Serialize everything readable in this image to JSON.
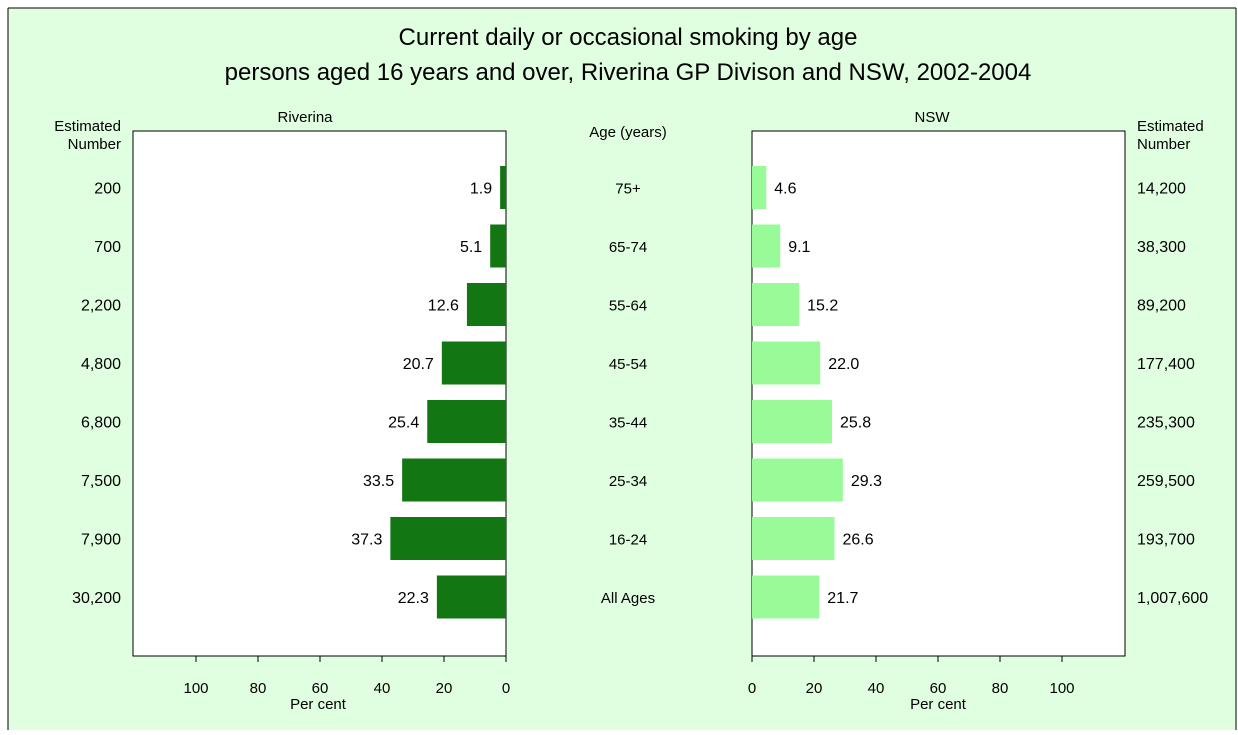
{
  "chart_data": {
    "type": "bar",
    "title": [
      "Current daily or occasional smoking by age",
      "persons aged 16 years and over, Riverina GP Divison and NSW, 2002-2004"
    ],
    "categories": [
      "75+",
      "65-74",
      "55-64",
      "45-54",
      "35-44",
      "25-34",
      "16-24",
      "All Ages"
    ],
    "category_axis_label": "Age (years)",
    "series": [
      {
        "name": "Riverina",
        "values": [
          1.9,
          5.1,
          12.6,
          20.7,
          25.4,
          33.5,
          37.3,
          22.3
        ],
        "value_labels": [
          "1.9",
          "5.1",
          "12.6",
          "20.7",
          "25.4",
          "33.5",
          "37.3",
          "22.3"
        ],
        "estimated_number": [
          "200",
          "700",
          "2,200",
          "4,800",
          "6,800",
          "7,500",
          "7,900",
          "30,200"
        ],
        "color": "#127612"
      },
      {
        "name": "NSW",
        "values": [
          4.6,
          9.1,
          15.2,
          22.0,
          25.8,
          29.3,
          26.6,
          21.7
        ],
        "value_labels": [
          "4.6",
          "9.1",
          "15.2",
          "22.0",
          "25.8",
          "29.3",
          "26.6",
          "21.7"
        ],
        "estimated_number": [
          "14,200",
          "38,300",
          "89,200",
          "177,400",
          "235,300",
          "259,500",
          "193,700",
          "1,007,600"
        ],
        "color": "#98fb98"
      }
    ],
    "estimated_number_label": [
      "Estimated",
      "Number"
    ],
    "xlabel": "Per cent",
    "xlim": [
      0,
      120
    ],
    "xticks": [
      0,
      20,
      40,
      60,
      80,
      100
    ],
    "xtick_labels": [
      "0",
      "20",
      "40",
      "60",
      "80",
      "100"
    ],
    "background_color": "#e0ffe0",
    "grid": false
  }
}
